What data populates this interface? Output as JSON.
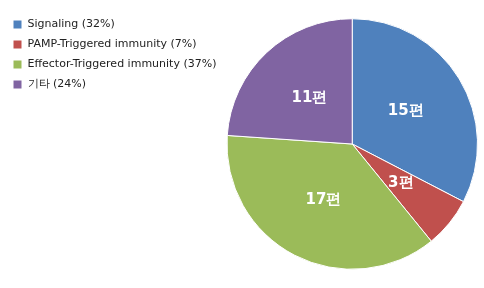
{
  "chart_data": {
    "type": "pie",
    "categories": [
      "Signaling (32%)",
      "PAMP-Triggered immunity (7%)",
      "Effector-Triggered immunity (37%)",
      "기타 (24%)"
    ],
    "values": [
      15,
      3,
      17,
      11
    ],
    "value_labels": [
      "15편",
      "3편",
      "17편",
      "11편"
    ],
    "colors": [
      "#4f81bd",
      "#c0504d",
      "#9bbb59",
      "#8064a2"
    ],
    "data_labels": true,
    "legend": "left"
  }
}
